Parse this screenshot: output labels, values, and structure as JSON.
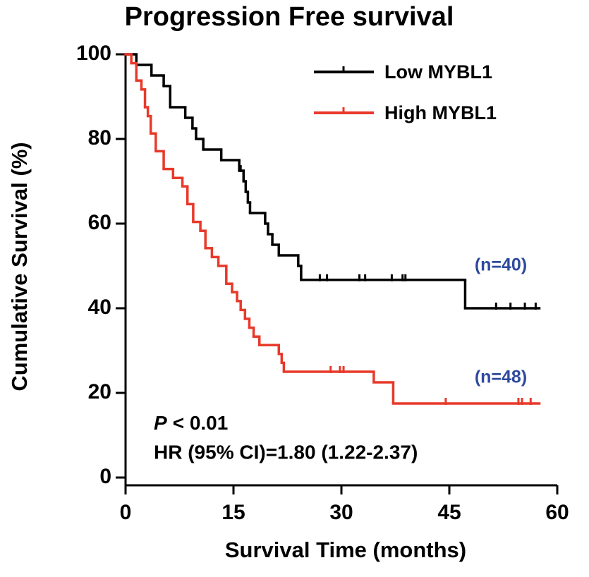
{
  "chart_data": {
    "type": "km",
    "title": "Progression Free survival",
    "x_label": "Survival Time (months)",
    "y_label": "Cumulative Survival (%)",
    "xlim": [
      0,
      60
    ],
    "xticks": [
      0,
      15,
      30,
      45,
      60
    ],
    "ylim": [
      0,
      100
    ],
    "yticks": [
      0,
      20,
      40,
      60,
      80,
      100
    ],
    "legend": "top-right",
    "series": [
      {
        "name": "Low MYBL1",
        "color": "#000000",
        "x": [
          0,
          1.5,
          3.6,
          5.3,
          6.2,
          8.3,
          9.3,
          9.8,
          10.8,
          13.3,
          15.8,
          16.4,
          16.7,
          17.0,
          17.3,
          19.4,
          19.8,
          20.4,
          21.3,
          24.0,
          24.4,
          47.2,
          57.5
        ],
        "values": [
          100,
          97.5,
          95,
          92.5,
          87.5,
          85,
          82.5,
          80,
          77.5,
          75,
          72.5,
          70,
          67.5,
          65,
          62.5,
          60,
          57.5,
          55,
          52.5,
          50,
          46.7,
          40,
          40
        ],
        "censored": [
          16.0,
          27.0,
          28.0,
          32.5,
          33.3,
          37.0,
          38.5,
          38.9,
          51.5,
          53.5,
          55.5,
          57.0
        ],
        "n_label": "(n=40)"
      },
      {
        "name": "High MYBL1",
        "color": "#e8392a",
        "x": [
          0,
          0.8,
          1.5,
          2.2,
          2.7,
          3.1,
          3.5,
          4.2,
          5.3,
          6.6,
          7.9,
          8.6,
          9.4,
          10.4,
          11.1,
          12.0,
          12.9,
          14.0,
          14.8,
          15.5,
          16.0,
          16.6,
          17.2,
          17.8,
          18.6,
          21.3,
          21.7,
          22.0,
          34.5,
          37.2,
          57.5
        ],
        "values": [
          100,
          97.9,
          93.8,
          91.7,
          87.5,
          85.4,
          81.3,
          77.1,
          72.9,
          70.8,
          68.8,
          64.6,
          60.4,
          58.3,
          54.2,
          52.1,
          50,
          45.8,
          43.8,
          41.7,
          39.6,
          37.5,
          35.4,
          33.3,
          31.3,
          29.2,
          27.1,
          25,
          22.5,
          17.5,
          17.5
        ],
        "censored": [
          28.5,
          29.8,
          30.3,
          44.5,
          54.6,
          55.1,
          56.3
        ],
        "n_label": "(n=48)"
      }
    ],
    "n_label_color": "#2e4a9e",
    "p_symbol": "P",
    "p_text": "< 0.01",
    "hr_text": "HR (95% CI)=1.80 (1.22-2.37)"
  }
}
